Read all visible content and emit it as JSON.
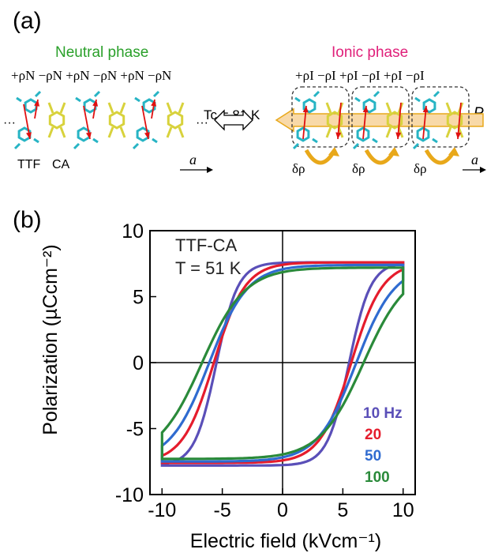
{
  "panel_a": {
    "label": "(a)",
    "neutral_title": "Neutral phase",
    "ionic_title": "Ionic phase",
    "neutral_charges": "+ρN −ρN +ρN −ρN +ρN −ρN",
    "ionic_charges": "+ρI −ρI +ρI −ρI +ρI −ρI",
    "ttf_label": "TTF",
    "ca_label": "CA",
    "tc_text": "Tc = 81 K",
    "delta_rho": "δρ",
    "axis_a": "a",
    "polarization_symbol": "P",
    "ellipsis": "···",
    "colors": {
      "ttf": "#27b4c4",
      "ca": "#d8d23c",
      "arrow_red": "#e01010",
      "neutral_green": "#2aa02a",
      "ionic_pink": "#e0207a",
      "transfer_orange": "#e8a81a"
    }
  },
  "panel_b": {
    "label": "(b)",
    "sample": "TTF-CA",
    "temperature": "T = 51 K"
  },
  "chart_data": {
    "type": "line",
    "title": "",
    "xlabel": "Electric field (kVcm⁻¹)",
    "ylabel": "Polarization (µCcm⁻²)",
    "xlim": [
      -11,
      11
    ],
    "ylim": [
      -10,
      10
    ],
    "xticks": [
      -10,
      -5,
      0,
      5,
      10
    ],
    "yticks": [
      -10,
      -5,
      0,
      5,
      10
    ],
    "grid": false,
    "zero_lines": true,
    "legend_placement": "bottom-right",
    "series": [
      {
        "name": "10 Hz",
        "color": "#5a4fb8",
        "Ps": 9.0,
        "Ec": 5.5,
        "width": 0.9,
        "Pmax_upper": 7.6,
        "Pmax_lower": -7.8
      },
      {
        "name": "20",
        "color": "#e51c2c",
        "Ps": 7.6,
        "Ec": 5.7,
        "width": 1.3,
        "Pmax_upper": 7.6,
        "Pmax_lower": -7.6
      },
      {
        "name": "50",
        "color": "#2f6bd0",
        "Ps": 7.5,
        "Ec": 6.1,
        "width": 1.6,
        "Pmax_upper": 7.4,
        "Pmax_lower": -7.5
      },
      {
        "name": "100",
        "color": "#2a8a3a",
        "Ps": 7.4,
        "Ec": 6.7,
        "width": 1.8,
        "Pmax_upper": 7.2,
        "Pmax_lower": -7.3
      }
    ]
  }
}
